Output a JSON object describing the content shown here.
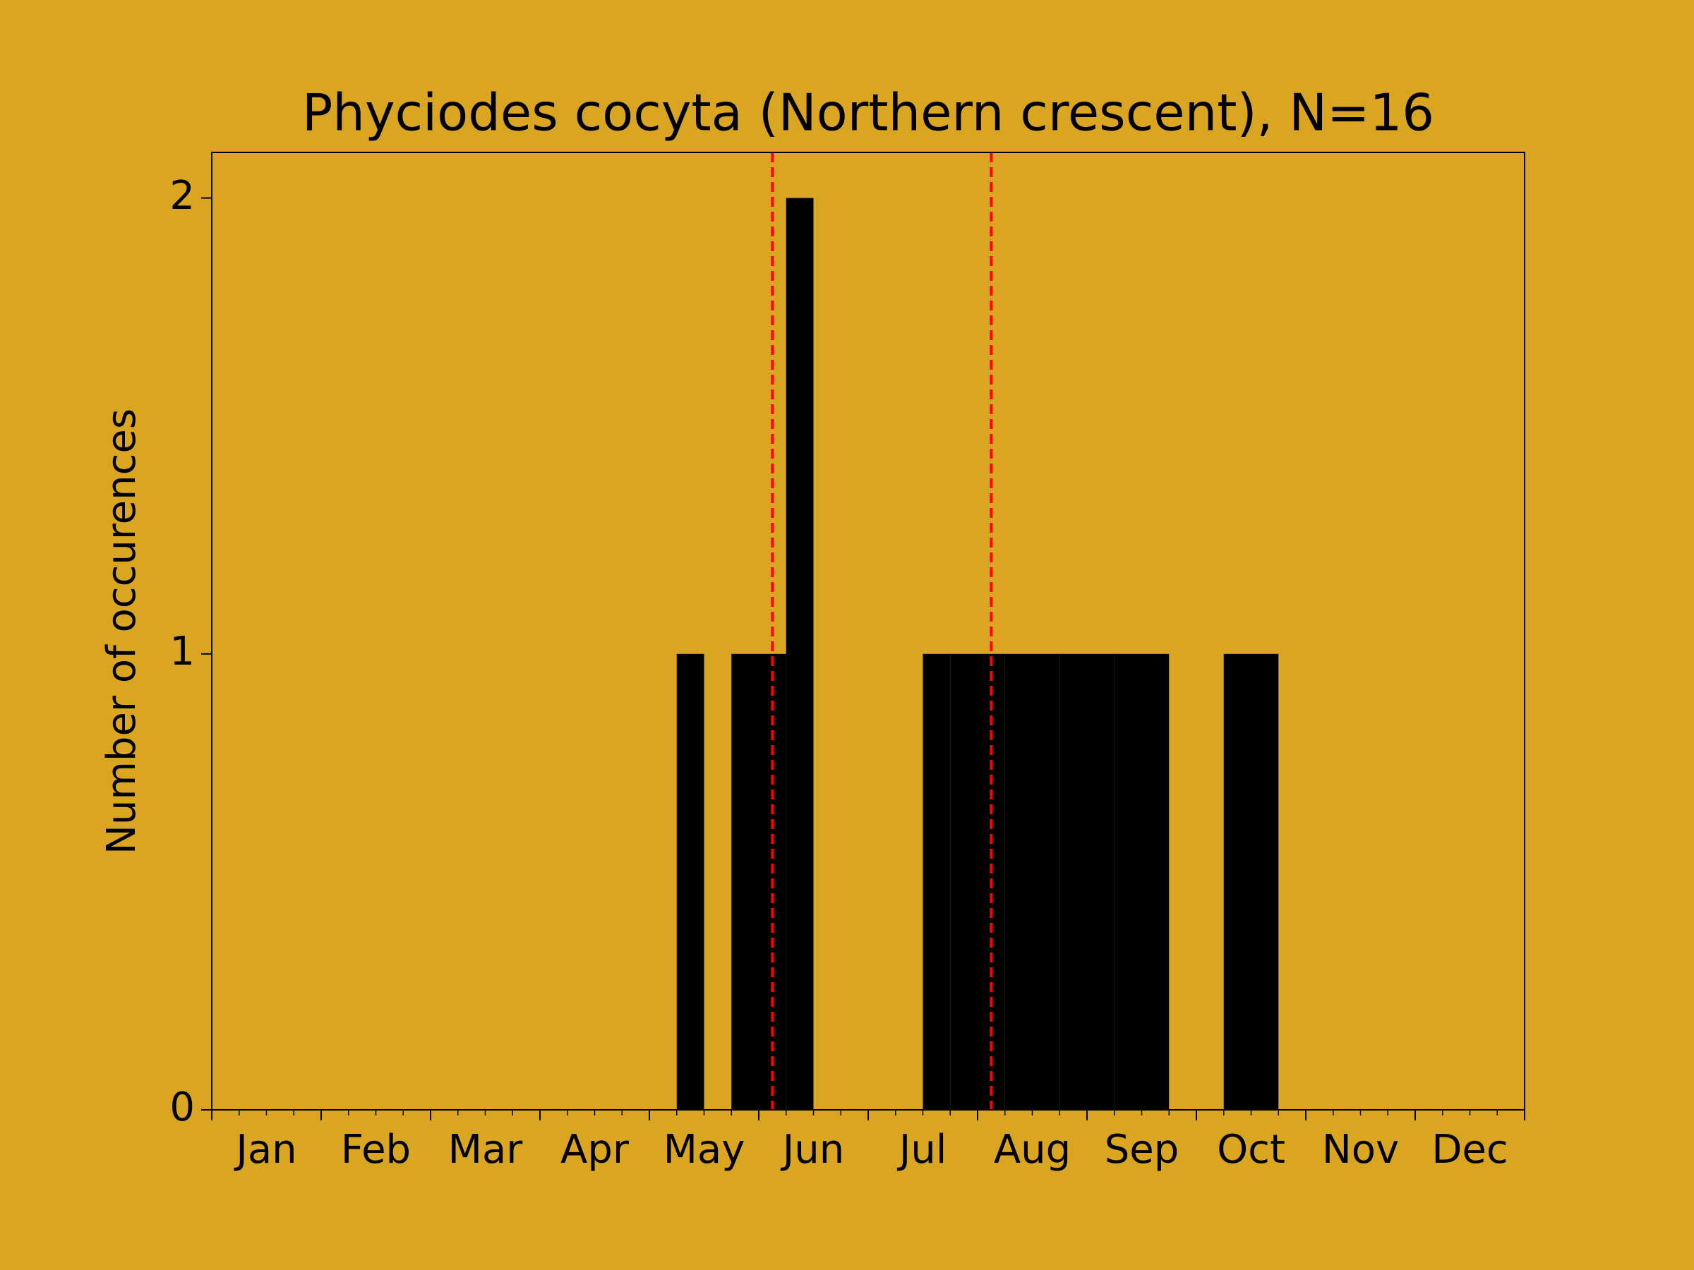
{
  "chart_data": {
    "type": "histogram",
    "title": "Phyciodes cocyta (Northern crescent), N=16",
    "ylabel": "Number of occurences",
    "bins": [
      0,
      1,
      2,
      3,
      4,
      5,
      6,
      7,
      8,
      9,
      10,
      11,
      12,
      13,
      14,
      15,
      16,
      17,
      18,
      19,
      20,
      21,
      22,
      23,
      24,
      25,
      26,
      27,
      28,
      29,
      30,
      31,
      32,
      33,
      34,
      35,
      36,
      37,
      38,
      39,
      40,
      41,
      42,
      43,
      44,
      45,
      46,
      47,
      48
    ],
    "counts": [
      0,
      0,
      0,
      0,
      0,
      0,
      0,
      0,
      0,
      0,
      0,
      0,
      0,
      0,
      0,
      0,
      0,
      1,
      0,
      1,
      1,
      2,
      0,
      0,
      0,
      0,
      1,
      1,
      1,
      1,
      1,
      1,
      1,
      1,
      1,
      0,
      0,
      1,
      1,
      0,
      0,
      0,
      0,
      0,
      0,
      0,
      0,
      0
    ],
    "color": "#000000",
    "xlim": [
      0,
      48
    ],
    "ylim": [
      0,
      2.1
    ],
    "yticks": [
      0,
      1,
      2
    ],
    "xticks": [
      {
        "value": 2,
        "label": "Jan"
      },
      {
        "value": 6,
        "label": "Feb"
      },
      {
        "value": 10,
        "label": "Mar"
      },
      {
        "value": 14,
        "label": "Apr"
      },
      {
        "value": 18,
        "label": "May"
      },
      {
        "value": 22,
        "label": "Jun"
      },
      {
        "value": 26,
        "label": "Jul"
      },
      {
        "value": 30,
        "label": "Aug"
      },
      {
        "value": 34,
        "label": "Sep"
      },
      {
        "value": 38,
        "label": "Oct"
      },
      {
        "value": 42,
        "label": "Nov"
      },
      {
        "value": 46,
        "label": "Dec"
      }
    ],
    "xmajorticks": [
      0,
      4,
      8,
      12,
      16,
      20,
      24,
      28,
      32,
      36,
      40,
      44,
      48
    ],
    "xminorticks": [
      0,
      1,
      2,
      3,
      4,
      5,
      6,
      7,
      8,
      9,
      10,
      11,
      12,
      13,
      14,
      15,
      16,
      17,
      18,
      19,
      20,
      21,
      22,
      23,
      24,
      25,
      26,
      27,
      28,
      29,
      30,
      31,
      32,
      33,
      34,
      35,
      36,
      37,
      38,
      39,
      40,
      41,
      42,
      43,
      44,
      45,
      46,
      47,
      48
    ],
    "vlines": [
      {
        "x": 20.5,
        "color": "#ff0000"
      },
      {
        "x": 28.5,
        "color": "#ff0000"
      }
    ]
  }
}
